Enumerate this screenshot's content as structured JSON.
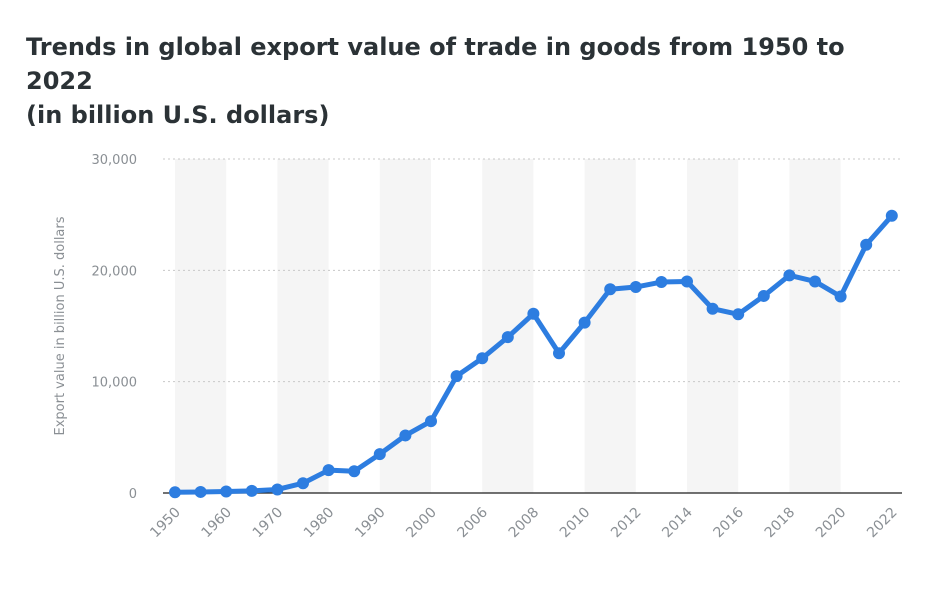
{
  "title_line1": "Trends in global export value of trade in goods from 1950 to 2022",
  "title_line2": "(in billion U.S. dollars)",
  "chart_data": {
    "type": "line",
    "title": "Trends in global export value of trade in goods from 1950 to 2022 (in billion U.S. dollars)",
    "xlabel": "",
    "ylabel": "Export value in billion U.S. dollars",
    "ylim": [
      0,
      30000
    ],
    "yticks": [
      0,
      10000,
      20000,
      30000
    ],
    "ytick_labels": [
      "0",
      "10,000",
      "20,000",
      "30,000"
    ],
    "grid": true,
    "categories": [
      "1950",
      "1955",
      "1960",
      "1965",
      "1970",
      "1975",
      "1980",
      "1985",
      "1990",
      "1995",
      "2000",
      "2005",
      "2006",
      "2007",
      "2008",
      "2009",
      "2010",
      "2011",
      "2012",
      "2013",
      "2014",
      "2015",
      "2016",
      "2017",
      "2018",
      "2019",
      "2020",
      "2021",
      "2022"
    ],
    "x_tick_labels": [
      "1950",
      "1960",
      "1970",
      "1980",
      "1990",
      "2000",
      "2006",
      "2008",
      "2010",
      "2012",
      "2014",
      "2016",
      "2018",
      "2020",
      "2022"
    ],
    "series": [
      {
        "color": "#2d7de0",
        "values": [
          62,
          95,
          130,
          187,
          317,
          877,
          2050,
          1950,
          3490,
          5170,
          6450,
          10500,
          12100,
          14000,
          16100,
          12550,
          15300,
          18300,
          18500,
          18950,
          19000,
          16550,
          16050,
          17700,
          19550,
          19000,
          17650,
          22300,
          24900
        ]
      }
    ]
  }
}
